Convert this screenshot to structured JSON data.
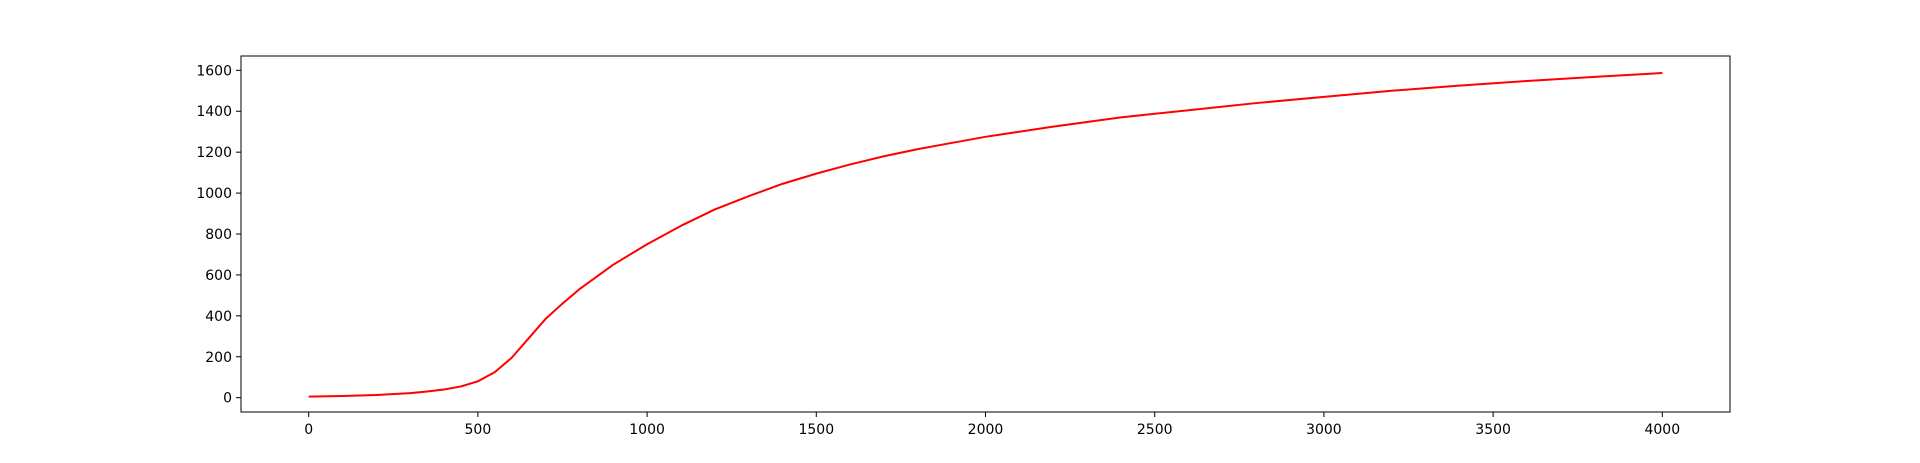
{
  "chart_data": {
    "type": "line",
    "title": "",
    "xlabel": "",
    "ylabel": "",
    "xlim": [
      -200,
      4200
    ],
    "ylim": [
      -70,
      1670
    ],
    "grid": false,
    "legend": "none",
    "x_ticks": [
      0,
      500,
      1000,
      1500,
      2000,
      2500,
      3000,
      3500,
      4000
    ],
    "x_tick_labels": [
      "0",
      "500",
      "1000",
      "1500",
      "2000",
      "2500",
      "3000",
      "3500",
      "4000"
    ],
    "y_ticks": [
      0,
      200,
      400,
      600,
      800,
      1000,
      1200,
      1400,
      1600
    ],
    "y_tick_labels": [
      "0",
      "200",
      "400",
      "600",
      "800",
      "1000",
      "1200",
      "1400",
      "1600"
    ],
    "series": [
      {
        "color": "#ff0000",
        "x": [
          0,
          100,
          200,
          300,
          350,
          400,
          450,
          500,
          550,
          600,
          650,
          700,
          750,
          800,
          900,
          1000,
          1100,
          1200,
          1300,
          1400,
          1500,
          1600,
          1700,
          1800,
          1900,
          2000,
          2200,
          2400,
          2600,
          2800,
          3000,
          3200,
          3400,
          3600,
          3800,
          4000
        ],
        "y": [
          5,
          8,
          13,
          22,
          30,
          40,
          55,
          80,
          125,
          195,
          290,
          385,
          460,
          530,
          650,
          750,
          840,
          920,
          985,
          1045,
          1095,
          1140,
          1180,
          1215,
          1245,
          1275,
          1325,
          1370,
          1405,
          1440,
          1470,
          1500,
          1525,
          1548,
          1568,
          1587
        ]
      }
    ]
  }
}
